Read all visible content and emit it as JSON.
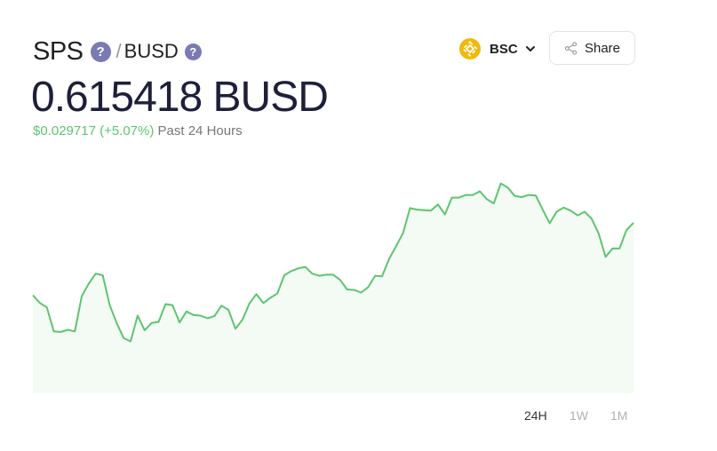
{
  "pair": {
    "base": "SPS",
    "separator": "/",
    "quote": "BUSD",
    "help_glyph": "?"
  },
  "price": {
    "value": "0.615418 BUSD",
    "change_value": "$0.029717 (+5.07%)",
    "change_period": "Past 24 Hours"
  },
  "network": {
    "label": "BSC",
    "icon": "bnb-icon",
    "color": "#F0B90B"
  },
  "share": {
    "label": "Share",
    "icon": "share-icon"
  },
  "range_tabs": [
    {
      "label": "24H",
      "active": true
    },
    {
      "label": "1W",
      "active": false
    },
    {
      "label": "1M",
      "active": false
    }
  ],
  "colors": {
    "line": "#5ec46f",
    "fill": "#f3fbf4"
  },
  "chart_data": {
    "type": "line",
    "title": "",
    "xlabel": "",
    "ylabel": "",
    "ylim": [
      0.578,
      0.6225
    ],
    "y": [
      0.5967,
      0.5952,
      0.5944,
      0.5898,
      0.5897,
      0.5901,
      0.5898,
      0.5965,
      0.5989,
      0.6008,
      0.6005,
      0.5948,
      0.5914,
      0.5885,
      0.5879,
      0.5928,
      0.59,
      0.5914,
      0.5916,
      0.595,
      0.5948,
      0.5915,
      0.5936,
      0.5929,
      0.5928,
      0.5923,
      0.5927,
      0.5947,
      0.5939,
      0.5903,
      0.592,
      0.5951,
      0.5969,
      0.5952,
      0.5962,
      0.597,
      0.6005,
      0.6013,
      0.6018,
      0.6021,
      0.6008,
      0.6004,
      0.6006,
      0.6006,
      0.5996,
      0.5978,
      0.5977,
      0.5972,
      0.5982,
      0.6004,
      0.6003,
      0.6036,
      0.606,
      0.6085,
      0.6133,
      0.613,
      0.6129,
      0.6128,
      0.614,
      0.6121,
      0.6153,
      0.6153,
      0.6158,
      0.6158,
      0.6165,
      0.615,
      0.6142,
      0.618,
      0.6172,
      0.6156,
      0.6154,
      0.6158,
      0.6157,
      0.613,
      0.6104,
      0.6126,
      0.6134,
      0.6128,
      0.6119,
      0.6126,
      0.6113,
      0.6085,
      0.604,
      0.6056,
      0.6056,
      0.6091,
      0.6105
    ]
  }
}
